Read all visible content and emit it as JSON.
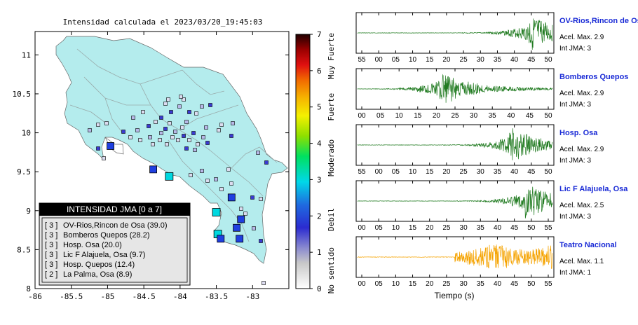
{
  "map": {
    "title": "Intensidad calculada el 2023/03/20_19:45:03",
    "x_ticks": [
      "-86",
      "-85.5",
      "-85",
      "-84.5",
      "-84",
      "-83.5",
      "-83"
    ],
    "y_ticks": [
      "11",
      "10.5",
      "10",
      "9.5",
      "9",
      "8.5",
      "8"
    ],
    "legend_title": "INTENSIDAD JMA [0 a 7]",
    "legend_items": [
      {
        "int": "[ 3 ]",
        "label": "OV-Rios,Rincon de Osa (39.0)"
      },
      {
        "int": "[ 3 ]",
        "label": "Bomberos Quepos (28.2)"
      },
      {
        "int": "[ 3 ]",
        "label": "Hosp. Osa (20.0)"
      },
      {
        "int": "[ 3 ]",
        "label": "Lic F Alajuela, Osa (9.7)"
      },
      {
        "int": "[ 3 ]",
        "label": "Hosp. Quepos (12.4)"
      },
      {
        "int": "[ 2 ]",
        "label": "La Palma, Osa (8.9)"
      }
    ]
  },
  "colorbar": {
    "ticks": [
      "0",
      "1",
      "2",
      "3",
      "4",
      "5",
      "6",
      "7"
    ],
    "labels": [
      "No sentido",
      "Debil",
      "Moderado",
      "Fuerte",
      "Muy Fuerte"
    ]
  },
  "waveforms": {
    "xlabel": "Tiempo (s)",
    "panels": [
      {
        "name": "OV-Rios,Rincon de Osa",
        "accel": "Acel. Max. 2.9",
        "jma": "Int JMA: 3",
        "color": "#1f7a1f",
        "ticks": [
          "55",
          "00",
          "05",
          "10",
          "15",
          "20",
          "25",
          "30",
          "35",
          "40",
          "45",
          "50"
        ],
        "burst": 0.88
      },
      {
        "name": "Bomberos Quepos",
        "accel": "Acel. Max. 2.9",
        "jma": "Int JMA: 3",
        "color": "#1f7a1f",
        "ticks": [
          "00",
          "05",
          "10",
          "15",
          "20",
          "25",
          "30",
          "35",
          "40",
          "45",
          "50"
        ],
        "burst": 0.42
      },
      {
        "name": "Hosp. Osa",
        "accel": "Acel. Max. 2.9",
        "jma": "Int JMA: 3",
        "color": "#1f7a1f",
        "ticks": [
          "55",
          "00",
          "05",
          "10",
          "15",
          "20",
          "25",
          "30",
          "35",
          "40",
          "45",
          "50"
        ],
        "burst": 0.78
      },
      {
        "name": "Lic F Alajuela, Osa",
        "accel": "Acel. Max. 2.5",
        "jma": "Int JMA: 3",
        "color": "#1f7a1f",
        "ticks": [
          "00",
          "05",
          "10",
          "15",
          "20",
          "25",
          "30",
          "35",
          "40",
          "45",
          "50",
          "55"
        ],
        "burst": 0.86
      },
      {
        "name": "Teatro Nacional",
        "accel": "Acel. Max. 1.1",
        "jma": "Int JMA: 1",
        "color": "#f5a300",
        "ticks": [
          "00",
          "05",
          "10",
          "15",
          "20",
          "25",
          "30",
          "35",
          "40",
          "45",
          "50",
          "55"
        ],
        "burst": 0.72
      }
    ]
  },
  "chart_data": {
    "type": "scatter",
    "title": "Intensidad calculada el 2023/03/20_19:45:03",
    "xlim": [
      -86,
      -82.5
    ],
    "ylim": [
      8,
      11.3
    ],
    "stations": [
      {
        "lon": -84.96,
        "lat": 9.83,
        "int": 2
      },
      {
        "lon": -84.37,
        "lat": 9.53,
        "int": 2
      },
      {
        "lon": -84.15,
        "lat": 9.44,
        "int": 3
      },
      {
        "lon": -83.29,
        "lat": 9.17,
        "int": 2
      },
      {
        "lon": -83.5,
        "lat": 8.98,
        "int": 3
      },
      {
        "lon": -83.16,
        "lat": 8.89,
        "int": 2
      },
      {
        "lon": -83.22,
        "lat": 8.78,
        "int": 2
      },
      {
        "lon": -83.48,
        "lat": 8.7,
        "int": 3
      },
      {
        "lon": -83.44,
        "lat": 8.64,
        "int": 2
      },
      {
        "lon": -83.18,
        "lat": 8.64,
        "int": 2
      }
    ]
  }
}
